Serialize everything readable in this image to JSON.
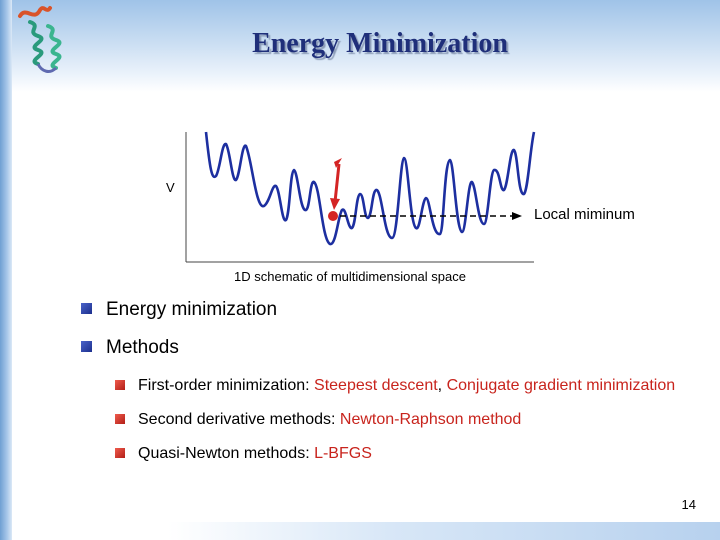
{
  "slide": {
    "title": "Energy Minimization",
    "page_number": "14"
  },
  "figure": {
    "y_axis_label": "V",
    "local_min_label": "Local miminum",
    "caption": "1D schematic of multidimensional space",
    "colors": {
      "curve": "#1d2fa0",
      "marker": "#d42424"
    }
  },
  "bullets": [
    {
      "text": "Energy minimization"
    },
    {
      "text": "Methods"
    }
  ],
  "sub_bullets": [
    {
      "prefix": "First-order minimization: ",
      "items": [
        "Steepest descent",
        ", ",
        "Conjugate gradient minimization"
      ]
    },
    {
      "prefix": "Second derivative methods: ",
      "items": [
        "Newton-Raphson method"
      ]
    },
    {
      "prefix": "Quasi-Newton methods: ",
      "items": [
        "L-BFGS"
      ]
    }
  ],
  "colors": {
    "title": "#1f2f7a",
    "accent_red": "#c8241d",
    "bullet_blue": "#2c3f9e"
  },
  "icons": {
    "logo": "protein-helix-logo",
    "bullet": "square-bullet-icon"
  }
}
